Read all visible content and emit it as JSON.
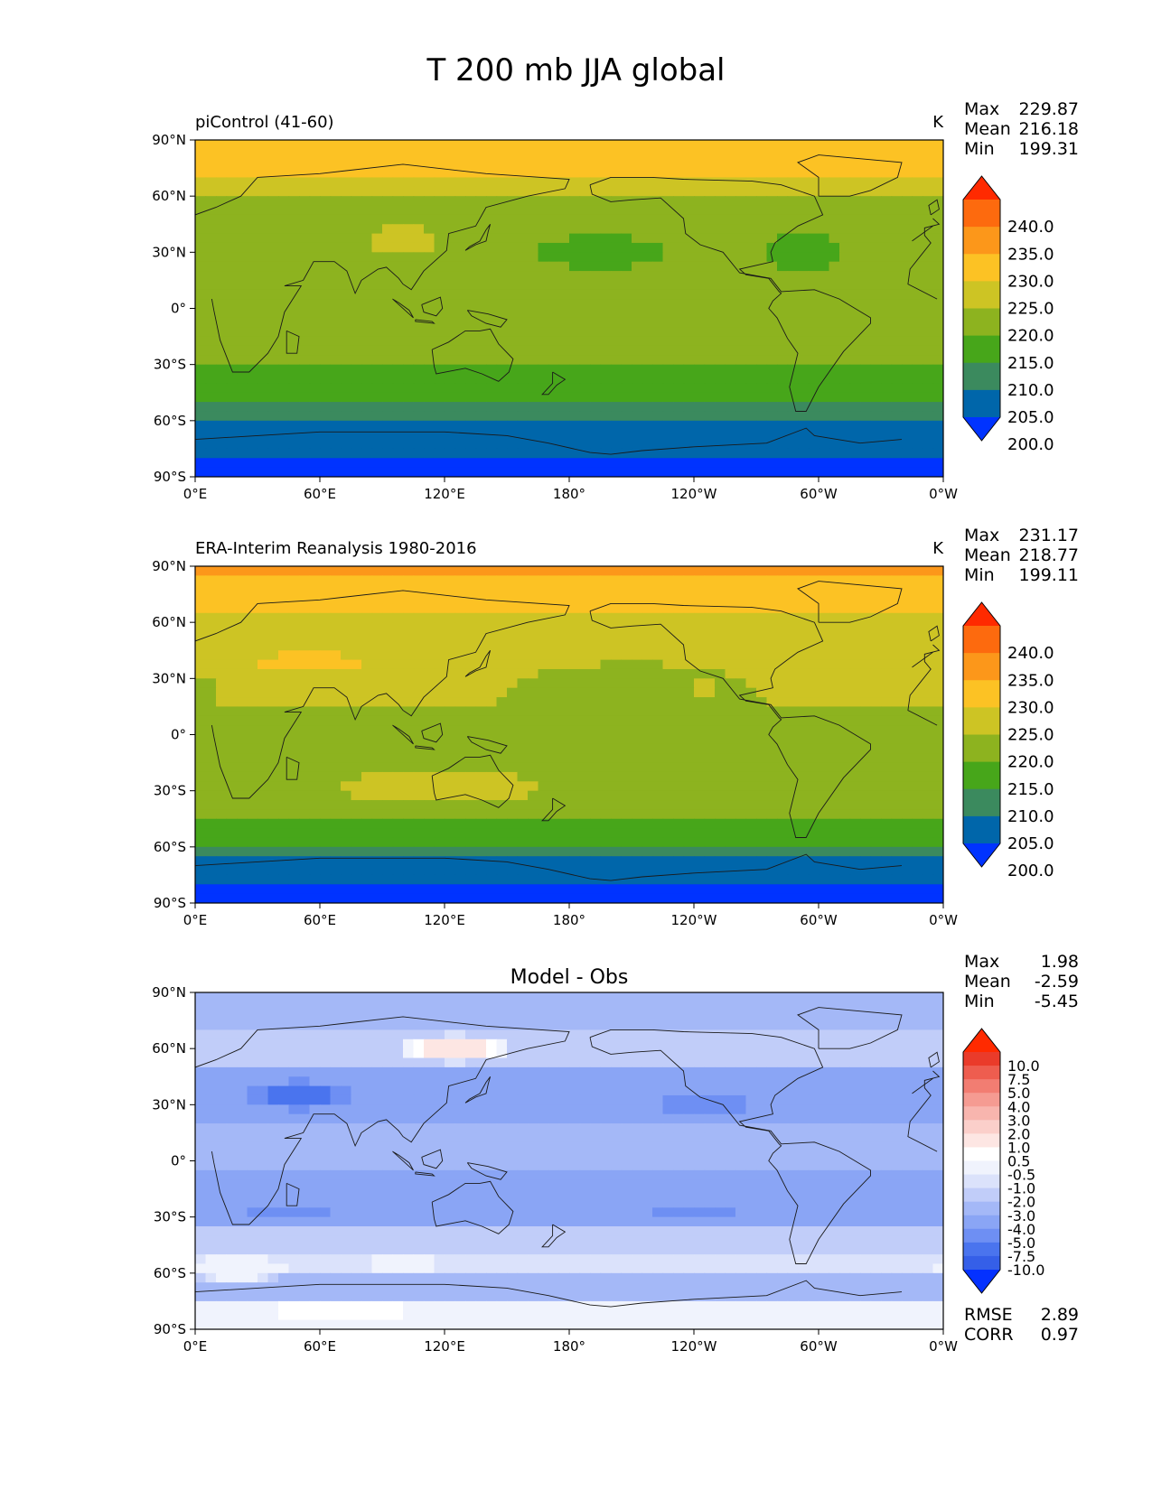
{
  "figure": {
    "title": "T 200 mb JJA global"
  },
  "colors": {
    "abs_levels": [
      "#0033ff",
      "#0066aa",
      "#3b8a5e",
      "#47a61a",
      "#8db31f",
      "#cdc424",
      "#fcc224",
      "#fc971a",
      "#fd6a0e",
      "#ff2a00"
    ],
    "diff_levels": [
      "#0431ff",
      "#355fe8",
      "#4a74ee",
      "#6e8ff3",
      "#8aa5f5",
      "#a4b8f7",
      "#c1cdf9",
      "#dbe2fb",
      "#f0f3fd",
      "#ffffff",
      "#fde6e3",
      "#fbcfca",
      "#f8b5ae",
      "#f59b92",
      "#f27d72",
      "#ee5d4f",
      "#ea3b2a",
      "#ff2a00"
    ],
    "land_outline": "#1a1a1a"
  },
  "axes": {
    "x_ticks": [
      "0°E",
      "60°E",
      "120°E",
      "180°",
      "120°W",
      "60°W",
      "0°W"
    ],
    "y_ticks": [
      "90°N",
      "60°N",
      "30°N",
      "0°",
      "30°S",
      "60°S",
      "90°S"
    ]
  },
  "panels": [
    {
      "left_title": "piControl (41-60)",
      "center_title": "",
      "units": "K",
      "stats": [
        [
          "Max",
          "229.87"
        ],
        [
          "Mean",
          "216.18"
        ],
        [
          "Min",
          "199.31"
        ]
      ],
      "colorbar_labels": [
        "240.0",
        "235.0",
        "230.0",
        "225.0",
        "220.0",
        "215.0",
        "210.0",
        "205.0",
        "200.0"
      ],
      "footer_stats": []
    },
    {
      "left_title": "ERA-Interim Reanalysis 1980-2016",
      "center_title": "",
      "units": "K",
      "stats": [
        [
          "Max",
          "231.17"
        ],
        [
          "Mean",
          "218.77"
        ],
        [
          "Min",
          "199.11"
        ]
      ],
      "colorbar_labels": [
        "240.0",
        "235.0",
        "230.0",
        "225.0",
        "220.0",
        "215.0",
        "210.0",
        "205.0",
        "200.0"
      ],
      "footer_stats": []
    },
    {
      "left_title": "",
      "center_title": "Model - Obs",
      "units": "",
      "stats": [
        [
          "Max",
          "1.98"
        ],
        [
          "Mean",
          "-2.59"
        ],
        [
          "Min",
          "-5.45"
        ]
      ],
      "colorbar_labels": [
        "10.0",
        "7.5",
        "5.0",
        "4.0",
        "3.0",
        "2.0",
        "1.0",
        "0.5",
        "-0.5",
        "-1.0",
        "-2.0",
        "-3.0",
        "-4.0",
        "-5.0",
        "-7.5",
        "-10.0"
      ],
      "footer_stats": [
        [
          "RMSE",
          "2.89"
        ],
        [
          "CORR",
          "0.97"
        ]
      ]
    }
  ],
  "chart_data": [
    {
      "type": "heatmap",
      "title": "piControl (41-60)",
      "units": "K",
      "xlim": [
        0,
        360
      ],
      "ylim": [
        -90,
        90
      ],
      "levels": [
        195,
        200,
        205,
        210,
        215,
        220,
        225,
        230,
        235,
        240,
        245
      ],
      "zonal_bands": [
        [
          90,
          72,
          227
        ],
        [
          72,
          58,
          222
        ],
        [
          58,
          40,
          219
        ],
        [
          40,
          20,
          217
        ],
        [
          20,
          -28,
          216
        ],
        [
          -28,
          -52,
          213
        ],
        [
          -52,
          -62,
          209
        ],
        [
          -62,
          -82,
          204
        ],
        [
          -82,
          -90,
          199
        ]
      ],
      "blobs": [
        [
          195,
          30,
          40,
          10,
          213
        ],
        [
          292,
          30,
          20,
          12,
          213
        ],
        [
          25,
          0,
          30,
          30,
          218
        ],
        [
          60,
          45,
          12,
          20,
          217
        ],
        [
          100,
          35,
          25,
          10,
          221
        ],
        [
          280,
          -20,
          45,
          10,
          216
        ]
      ],
      "summary": {
        "max": 229.87,
        "mean": 216.18,
        "min": 199.31
      }
    },
    {
      "type": "heatmap",
      "title": "ERA-Interim Reanalysis 1980-2016",
      "units": "K",
      "xlim": [
        0,
        360
      ],
      "ylim": [
        -90,
        90
      ],
      "levels": [
        195,
        200,
        205,
        210,
        215,
        220,
        225,
        230,
        235,
        240,
        245
      ],
      "zonal_bands": [
        [
          90,
          84,
          231
        ],
        [
          84,
          65,
          227
        ],
        [
          65,
          45,
          222
        ],
        [
          45,
          15,
          221
        ],
        [
          15,
          -15,
          219
        ],
        [
          -15,
          -35,
          217
        ],
        [
          -35,
          -45,
          216
        ],
        [
          -45,
          -58,
          214
        ],
        [
          -58,
          -65,
          208
        ],
        [
          -65,
          -78,
          204
        ],
        [
          -78,
          -90,
          199
        ]
      ],
      "blobs": [
        [
          55,
          38,
          35,
          8,
          226
        ],
        [
          210,
          15,
          70,
          25,
          217
        ],
        [
          118,
          -28,
          60,
          12,
          222
        ],
        [
          365,
          20,
          10,
          12,
          226
        ],
        [
          243,
          25,
          8,
          8,
          221
        ],
        [
          5,
          15,
          10,
          20,
          218
        ]
      ],
      "summary": {
        "max": 231.17,
        "mean": 218.77,
        "min": 199.11
      }
    },
    {
      "type": "heatmap",
      "title": "Model - Obs",
      "units": "",
      "xlim": [
        0,
        360
      ],
      "ylim": [
        -90,
        90
      ],
      "levels": [
        -15,
        -10,
        -7.5,
        -5,
        -4,
        -3,
        -2,
        -1,
        -0.5,
        0.5,
        1,
        2,
        3,
        4,
        5,
        7.5,
        10,
        15
      ],
      "zonal_bands": [
        [
          90,
          70,
          -2.2
        ],
        [
          70,
          52,
          -1.5
        ],
        [
          52,
          20,
          -3.8
        ],
        [
          20,
          -5,
          -3.0
        ],
        [
          -5,
          -35,
          -3.2
        ],
        [
          -35,
          -48,
          -1.8
        ],
        [
          -48,
          -62,
          -0.8
        ],
        [
          -62,
          -75,
          -2.5
        ],
        [
          -75,
          -90,
          -0.5
        ]
      ],
      "blobs": [
        [
          125,
          60,
          30,
          8,
          1.2
        ],
        [
          50,
          35,
          25,
          8,
          -5.2
        ],
        [
          245,
          30,
          25,
          8,
          -4.5
        ],
        [
          45,
          -28,
          30,
          6,
          -4.2
        ],
        [
          240,
          -28,
          25,
          6,
          -4.3
        ],
        [
          100,
          -55,
          20,
          6,
          0.2
        ],
        [
          20,
          -58,
          25,
          8,
          0.1
        ],
        [
          70,
          -80,
          55,
          6,
          0.8
        ]
      ],
      "summary": {
        "max": 1.98,
        "mean": -2.59,
        "min": -5.45,
        "rmse": 2.89,
        "corr": 0.97
      }
    }
  ]
}
